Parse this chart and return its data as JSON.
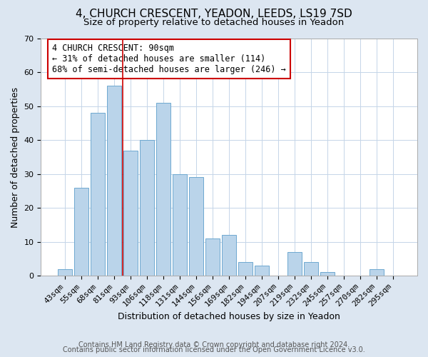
{
  "title": "4, CHURCH CRESCENT, YEADON, LEEDS, LS19 7SD",
  "subtitle": "Size of property relative to detached houses in Yeadon",
  "xlabel": "Distribution of detached houses by size in Yeadon",
  "ylabel": "Number of detached properties",
  "bar_labels": [
    "43sqm",
    "55sqm",
    "68sqm",
    "81sqm",
    "93sqm",
    "106sqm",
    "118sqm",
    "131sqm",
    "144sqm",
    "156sqm",
    "169sqm",
    "182sqm",
    "194sqm",
    "207sqm",
    "219sqm",
    "232sqm",
    "245sqm",
    "257sqm",
    "270sqm",
    "282sqm",
    "295sqm"
  ],
  "bar_values": [
    2,
    26,
    48,
    56,
    37,
    40,
    51,
    30,
    29,
    11,
    12,
    4,
    3,
    0,
    7,
    4,
    1,
    0,
    0,
    2,
    0
  ],
  "bar_color": "#bad4ea",
  "bar_edge_color": "#6ea8d0",
  "ylim": [
    0,
    70
  ],
  "yticks": [
    0,
    10,
    20,
    30,
    40,
    50,
    60,
    70
  ],
  "red_line_x": 3.5,
  "annotation_title": "4 CHURCH CRESCENT: 90sqm",
  "annotation_line1": "← 31% of detached houses are smaller (114)",
  "annotation_line2": "68% of semi-detached houses are larger (246) →",
  "annotation_box_color": "#ffffff",
  "annotation_box_edge_color": "#cc0000",
  "red_line_color": "#cc0000",
  "footer1": "Contains HM Land Registry data © Crown copyright and database right 2024.",
  "footer2": "Contains public sector information licensed under the Open Government Licence v3.0.",
  "background_color": "#dce6f1",
  "plot_bg_color": "#ffffff",
  "title_fontsize": 11,
  "subtitle_fontsize": 9.5,
  "axis_label_fontsize": 9,
  "tick_fontsize": 8,
  "annotation_fontsize": 8.5,
  "footer_fontsize": 7
}
